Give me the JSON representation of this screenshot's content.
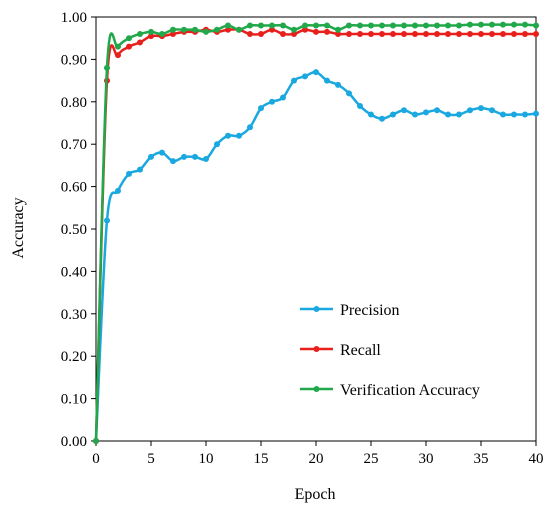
{
  "chart_data": {
    "type": "line",
    "title": "",
    "xlabel": "Epoch",
    "ylabel": "Accuracy",
    "xlim": [
      0,
      40
    ],
    "ylim": [
      0,
      1
    ],
    "x_ticks": [
      "0",
      "5",
      "10",
      "15",
      "20",
      "25",
      "30",
      "35",
      "40"
    ],
    "y_ticks": [
      "0.00",
      "0.10",
      "0.20",
      "0.30",
      "0.40",
      "0.50",
      "0.60",
      "0.70",
      "0.80",
      "0.90",
      "1.00"
    ],
    "grid": false,
    "legend_position": "bottom-right",
    "x": [
      0,
      1,
      2,
      3,
      4,
      5,
      6,
      7,
      8,
      9,
      10,
      11,
      12,
      13,
      14,
      15,
      16,
      17,
      18,
      19,
      20,
      21,
      22,
      23,
      24,
      25,
      26,
      27,
      28,
      29,
      30,
      31,
      32,
      33,
      34,
      35,
      36,
      37,
      38,
      39,
      40
    ],
    "series": [
      {
        "name": "Precision",
        "color": "#1aa8e0",
        "values": [
          0.0,
          0.52,
          0.59,
          0.63,
          0.64,
          0.67,
          0.68,
          0.66,
          0.67,
          0.67,
          0.665,
          0.7,
          0.72,
          0.72,
          0.74,
          0.785,
          0.8,
          0.81,
          0.85,
          0.86,
          0.87,
          0.85,
          0.84,
          0.82,
          0.79,
          0.77,
          0.76,
          0.77,
          0.78,
          0.77,
          0.775,
          0.78,
          0.77,
          0.77,
          0.78,
          0.785,
          0.78,
          0.77,
          0.77,
          0.77,
          0.772
        ]
      },
      {
        "name": "Recall",
        "color": "#e8201c",
        "values": [
          0.0,
          0.85,
          0.91,
          0.93,
          0.94,
          0.955,
          0.955,
          0.96,
          0.965,
          0.965,
          0.97,
          0.965,
          0.97,
          0.97,
          0.96,
          0.96,
          0.97,
          0.96,
          0.96,
          0.97,
          0.965,
          0.965,
          0.96,
          0.96,
          0.96,
          0.96,
          0.96,
          0.96,
          0.96,
          0.96,
          0.96,
          0.96,
          0.96,
          0.96,
          0.96,
          0.96,
          0.96,
          0.96,
          0.96,
          0.96,
          0.96
        ]
      },
      {
        "name": "Verification Accuracy",
        "color": "#20a84a",
        "values": [
          0.0,
          0.88,
          0.93,
          0.95,
          0.96,
          0.965,
          0.96,
          0.97,
          0.97,
          0.97,
          0.965,
          0.97,
          0.98,
          0.97,
          0.98,
          0.98,
          0.98,
          0.98,
          0.97,
          0.98,
          0.98,
          0.98,
          0.97,
          0.98,
          0.98,
          0.98,
          0.98,
          0.98,
          0.98,
          0.98,
          0.98,
          0.98,
          0.98,
          0.98,
          0.982,
          0.982,
          0.982,
          0.982,
          0.982,
          0.982,
          0.98
        ]
      }
    ]
  }
}
